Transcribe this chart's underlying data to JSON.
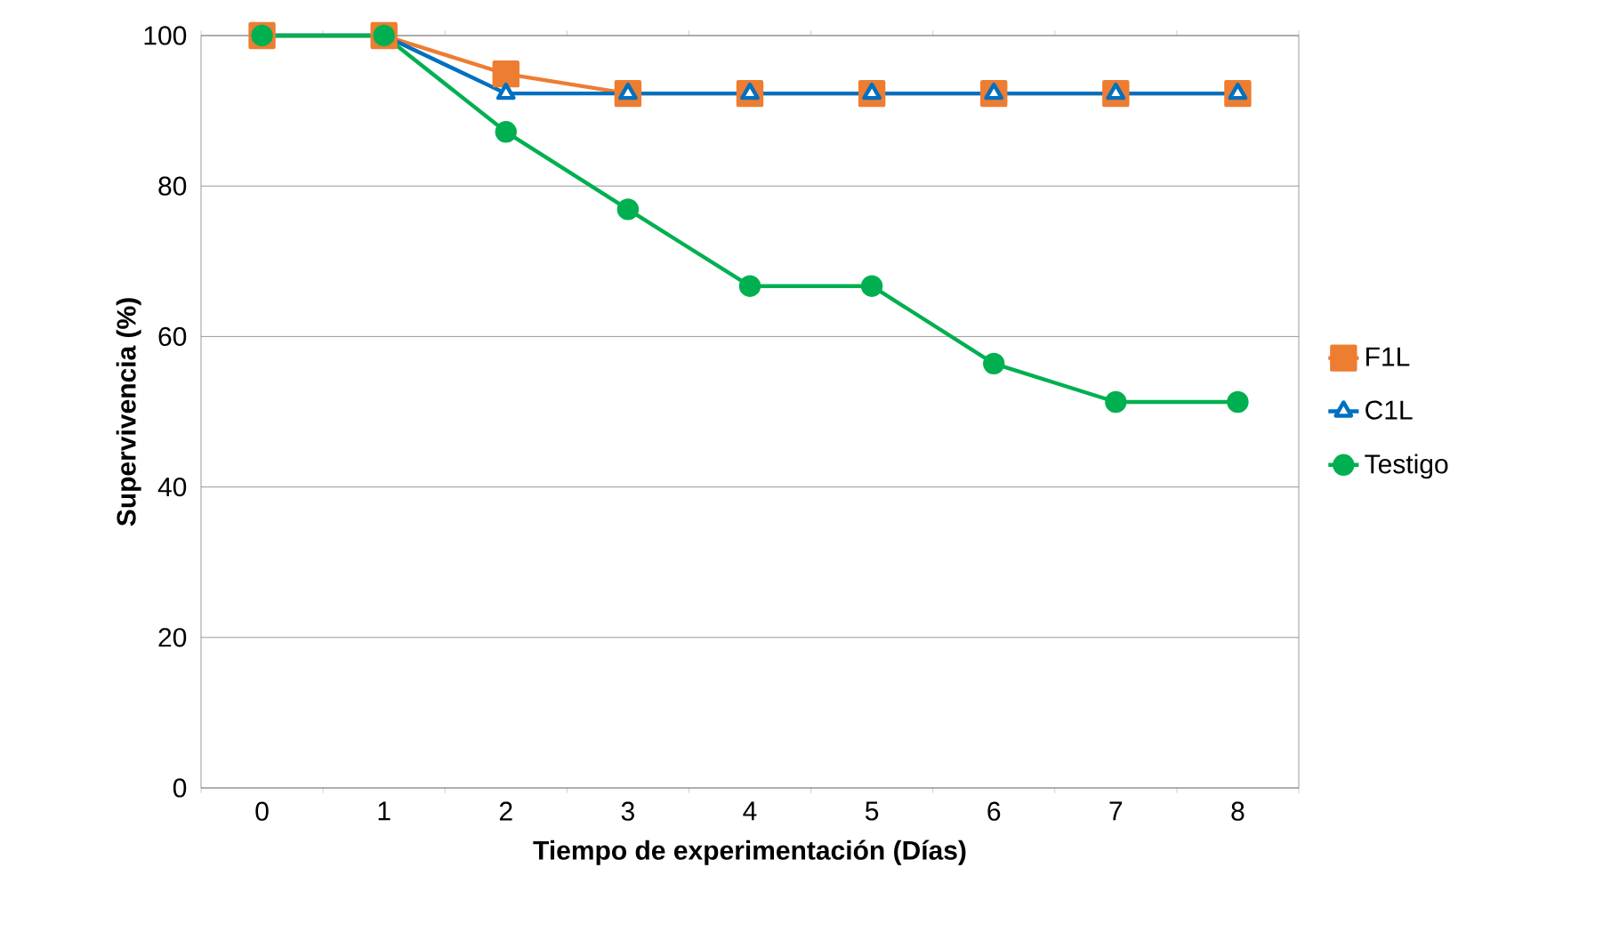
{
  "chart_data": {
    "type": "line",
    "xlabel": "Tiempo de experimentación (Días)",
    "ylabel": "Supervivencia (%)",
    "categories": [
      "0",
      "1",
      "2",
      "3",
      "4",
      "5",
      "6",
      "7",
      "8"
    ],
    "series": [
      {
        "name": "F1L",
        "color": "#ed7d31",
        "marker": "square",
        "values": [
          100,
          100,
          94.9,
          92.3,
          92.3,
          92.3,
          92.3,
          92.3,
          92.3
        ]
      },
      {
        "name": "C1L",
        "color": "#0070c0",
        "marker": "triangle",
        "values": [
          100,
          100,
          92.3,
          92.3,
          92.3,
          92.3,
          92.3,
          92.3,
          92.3
        ]
      },
      {
        "name": "Testigo",
        "color": "#00b050",
        "marker": "circle",
        "values": [
          100,
          100,
          87.2,
          76.9,
          66.7,
          66.7,
          56.4,
          51.3,
          51.3
        ]
      }
    ],
    "ylim": [
      0,
      100
    ],
    "yticks": [
      0,
      20,
      40,
      60,
      80,
      100
    ],
    "grid": "y",
    "legend": "right",
    "line_style": "solid"
  }
}
